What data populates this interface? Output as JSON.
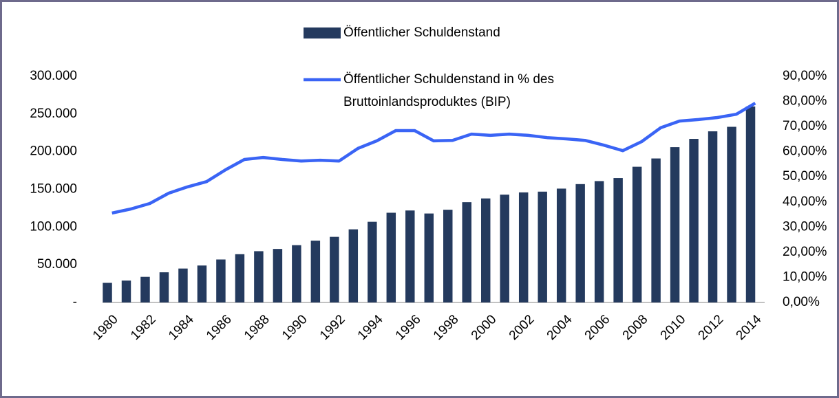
{
  "chart_data": {
    "type": "bar-line",
    "categories": [
      "1980",
      null,
      "1982",
      null,
      "1984",
      null,
      "1986",
      null,
      "1988",
      null,
      "1990",
      null,
      "1992",
      null,
      "1994",
      null,
      "1996",
      null,
      "1998",
      null,
      "2000",
      null,
      "2002",
      null,
      "2004",
      null,
      "2006",
      null,
      "2008",
      null,
      "2010",
      null,
      "2012",
      null,
      "2014"
    ],
    "series": [
      {
        "name": "Öffentlicher Schuldenstand",
        "type": "bar",
        "color": "#243a5e",
        "values": [
          26000,
          29000,
          34000,
          40000,
          45000,
          49000,
          57000,
          64000,
          68000,
          71000,
          76000,
          82000,
          87000,
          97000,
          107000,
          119000,
          122000,
          118000,
          123000,
          133000,
          138000,
          143000,
          146000,
          147000,
          151000,
          157000,
          161000,
          165000,
          180000,
          191000,
          206000,
          217000,
          227000,
          233000,
          260000
        ]
      },
      {
        "name": "Öffentlicher Schuldenstand in % des Bruttoinlandsproduktes (BIP)",
        "type": "line",
        "axis": "y2",
        "color": "#3a64f5",
        "values": [
          35.6,
          37.2,
          39.4,
          43.5,
          46,
          48.1,
          52.8,
          56.9,
          57.7,
          56.9,
          56.3,
          56.6,
          56.3,
          61.3,
          64.3,
          68.4,
          68.4,
          64.3,
          64.5,
          67,
          66.5,
          67,
          66.5,
          65.6,
          65.1,
          64.5,
          62.6,
          60.4,
          64,
          69.5,
          72.2,
          72.8,
          73.6,
          74.9,
          79.3
        ]
      }
    ],
    "ylim": [
      0,
      300000
    ],
    "yticks": [
      {
        "value": 0,
        "label": "-"
      },
      {
        "value": 50000,
        "label": "50.000"
      },
      {
        "value": 100000,
        "label": "100.000"
      },
      {
        "value": 150000,
        "label": "150.000"
      },
      {
        "value": 200000,
        "label": "200.000"
      },
      {
        "value": 250000,
        "label": "250.000"
      },
      {
        "value": 300000,
        "label": "300.000"
      }
    ],
    "y2lim": [
      0,
      90
    ],
    "y2ticks": [
      {
        "value": 0,
        "label": "0,00%"
      },
      {
        "value": 10,
        "label": "10,00%"
      },
      {
        "value": 20,
        "label": "20,00%"
      },
      {
        "value": 30,
        "label": "30,00%"
      },
      {
        "value": 40,
        "label": "40,00%"
      },
      {
        "value": 50,
        "label": "50,00%"
      },
      {
        "value": 60,
        "label": "60,00%"
      },
      {
        "value": 70,
        "label": "70,00%"
      },
      {
        "value": 80,
        "label": "80,00%"
      },
      {
        "value": 90,
        "label": "90,00%"
      }
    ],
    "grid": false
  }
}
